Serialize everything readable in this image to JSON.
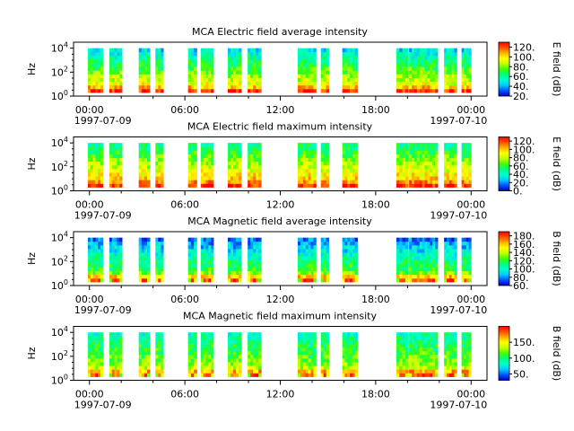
{
  "figure": {
    "x_axis": {
      "ticks": [
        "00:00",
        "06:00",
        "12:00",
        "18:00",
        "00:00"
      ],
      "tick_hours": [
        0,
        6,
        12,
        18,
        24
      ],
      "minor_tick_hours": [
        2,
        4,
        8,
        10,
        14,
        16,
        20,
        22
      ],
      "date_labels": [
        "1997-07-09",
        "1997-07-10"
      ],
      "range_hours": [
        -1,
        25
      ]
    },
    "y_axis": {
      "label": "Hz",
      "scale": "log",
      "ticks": [
        {
          "base": "10",
          "exp": "0"
        },
        {
          "base": "10",
          "exp": "2"
        },
        {
          "base": "10",
          "exp": "4"
        }
      ],
      "range_log10": [
        0,
        4.5
      ]
    },
    "data_intervals_hours": [
      [
        -0.1,
        0.85
      ],
      [
        1.25,
        2.05
      ],
      [
        3.1,
        3.8
      ],
      [
        4.15,
        4.65
      ],
      [
        6.2,
        6.75
      ],
      [
        7.0,
        7.8
      ],
      [
        8.7,
        9.55
      ],
      [
        9.95,
        10.8
      ],
      [
        13.1,
        14.25
      ],
      [
        14.55,
        15.05
      ],
      [
        15.9,
        16.85
      ],
      [
        19.3,
        20.05
      ],
      [
        20.1,
        21.9
      ],
      [
        22.3,
        23.1
      ],
      [
        23.4,
        24.0
      ]
    ],
    "colormap": [
      "#0000cc",
      "#0050ff",
      "#00c8ff",
      "#00ffcc",
      "#00ff80",
      "#40ff00",
      "#c0ff00",
      "#ffff00",
      "#ffb000",
      "#ff5000",
      "#ff0000"
    ]
  },
  "chart_data": [
    {
      "type": "heatmap",
      "title": "MCA  Electric field average intensity",
      "xlabel": "",
      "ylabel": "Hz",
      "colorbar_label": "E field (dB)",
      "colorbar_ticks": [
        "20.",
        "40.",
        "60.",
        "80.",
        "100.",
        "120."
      ],
      "colorbar_range": [
        20,
        130
      ]
    },
    {
      "type": "heatmap",
      "title": "MCA  Electric field maximum intensity",
      "xlabel": "",
      "ylabel": "Hz",
      "colorbar_label": "E field (dB)",
      "colorbar_ticks": [
        "0.",
        "20.",
        "40.",
        "60.",
        "80.",
        "100.",
        "120."
      ],
      "colorbar_range": [
        0,
        130
      ]
    },
    {
      "type": "heatmap",
      "title": "MCA  Magnetic field average intensity",
      "xlabel": "",
      "ylabel": "Hz",
      "colorbar_label": "B field (dB)",
      "colorbar_ticks": [
        "60.",
        "80.",
        "100.",
        "120.",
        "140.",
        "160.",
        "180."
      ],
      "colorbar_range": [
        60,
        190
      ]
    },
    {
      "type": "heatmap",
      "title": "MCA  Magnetic field maximum intensity",
      "xlabel": "",
      "ylabel": "Hz",
      "colorbar_label": "B field (dB)",
      "colorbar_ticks": [
        "50.",
        "100.",
        "150."
      ],
      "colorbar_range": [
        30,
        200
      ]
    }
  ]
}
